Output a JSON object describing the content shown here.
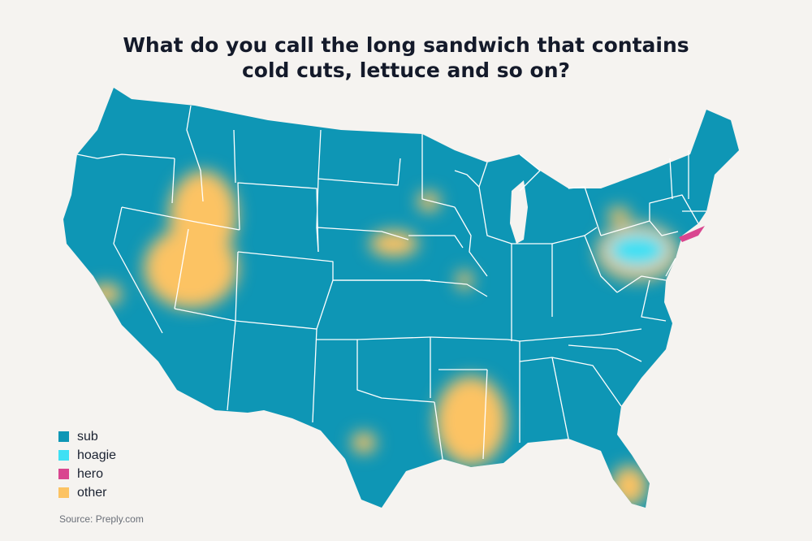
{
  "title": {
    "line1": "What do you call the long sandwich that contains",
    "line2": "cold cuts, lettuce and so on?"
  },
  "legend": [
    {
      "label": "sub",
      "color": "#0e96b5"
    },
    {
      "label": "hoagie",
      "color": "#3ee0f4"
    },
    {
      "label": "hero",
      "color": "#d9468f"
    },
    {
      "label": "other",
      "color": "#fcc363"
    }
  ],
  "source": "Source: Preply.com",
  "colors": {
    "sub": "#0e96b5",
    "hoagie": "#3ee0f4",
    "hero": "#d9468f",
    "other": "#fcc363",
    "border": "#ffffff",
    "background": "#f5f3f0"
  }
}
